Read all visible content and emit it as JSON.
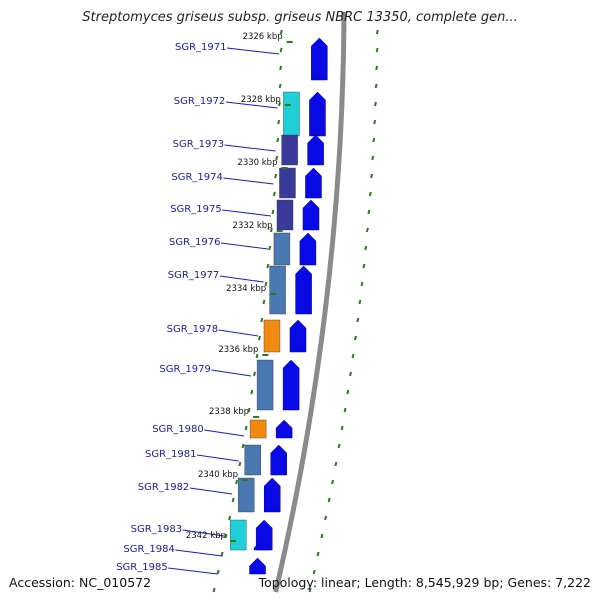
{
  "title": "Streptomyces griseus subsp. griseus NBRC 13350, complete gen...",
  "footer": {
    "accession": "Accession: NC_010572",
    "summary": "Topology: linear; Length: 8,545,929 bp; Genes: 7,222"
  },
  "colors": {
    "gene_arrow": "#0a0ae6",
    "gene_label": "#1a1aa8",
    "tick": "#2a7a1a",
    "backbone": "#8a8a8a",
    "cds_blue": "#4a78b0",
    "cds_orange": "#f08a10",
    "cds_cyan": "#1fd0d8",
    "cds_navy": "#3a3a9a"
  },
  "genes": [
    {
      "id": "SGR_1971"
    },
    {
      "id": "SGR_1972"
    },
    {
      "id": "SGR_1973"
    },
    {
      "id": "SGR_1974"
    },
    {
      "id": "SGR_1975"
    },
    {
      "id": "SGR_1976"
    },
    {
      "id": "SGR_1977"
    },
    {
      "id": "SGR_1978"
    },
    {
      "id": "SGR_1979"
    },
    {
      "id": "SGR_1980"
    },
    {
      "id": "SGR_1981"
    },
    {
      "id": "SGR_1982"
    },
    {
      "id": "SGR_1983"
    },
    {
      "id": "SGR_1984"
    },
    {
      "id": "SGR_1985"
    }
  ],
  "scale_labels": [
    "2326 kbp",
    "2328 kbp",
    "2330 kbp",
    "2332 kbp",
    "2334 kbp",
    "2336 kbp",
    "2338 kbp",
    "2340 kbp",
    "2342 kbp"
  ]
}
